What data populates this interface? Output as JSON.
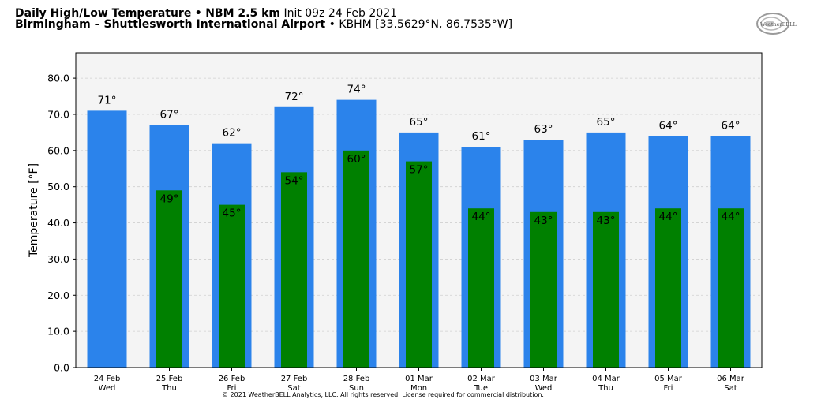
{
  "header": {
    "title_bold_1": "Daily High/Low Temperature",
    "separator": "•",
    "title_bold_2": "NBM 2.5 km",
    "init_text": "Init 09z 24 Feb 2021",
    "location_bold": "Birmingham – Shuttlesworth International Airport",
    "station_text": "KBHM [33.5629°N, 86.7535°W]"
  },
  "logo": {
    "text": "WeatherBELL"
  },
  "footer": {
    "copyright": "© 2021 WeatherBELL Analytics, LLC. All rights reserved. License required for commercial distribution."
  },
  "colors": {
    "high": "#2b83eb",
    "low": "#008000",
    "plot_bg": "#f4f4f4"
  },
  "chart_data": {
    "type": "bar",
    "ylabel": "Temperature [°F]",
    "ylim": [
      0,
      87
    ],
    "yticks": [
      "0.0",
      "10.0",
      "20.0",
      "30.0",
      "40.0",
      "50.0",
      "60.0",
      "70.0",
      "80.0"
    ],
    "ytick_values": [
      0,
      10,
      20,
      30,
      40,
      50,
      60,
      70,
      80
    ],
    "grid": true,
    "categories": [
      [
        "24 Feb",
        "Wed"
      ],
      [
        "25 Feb",
        "Thu"
      ],
      [
        "26 Feb",
        "Fri"
      ],
      [
        "27 Feb",
        "Sat"
      ],
      [
        "28 Feb",
        "Sun"
      ],
      [
        "01 Mar",
        "Mon"
      ],
      [
        "02 Mar",
        "Tue"
      ],
      [
        "03 Mar",
        "Wed"
      ],
      [
        "04 Mar",
        "Thu"
      ],
      [
        "05 Mar",
        "Fri"
      ],
      [
        "06 Mar",
        "Sat"
      ]
    ],
    "series": [
      {
        "key": "high",
        "values": [
          71,
          67,
          62,
          72,
          74,
          65,
          61,
          63,
          65,
          64,
          64
        ],
        "labels": [
          "71°",
          "67°",
          "62°",
          "72°",
          "74°",
          "65°",
          "61°",
          "63°",
          "65°",
          "64°",
          "64°"
        ]
      },
      {
        "key": "low",
        "values": [
          null,
          49,
          45,
          54,
          60,
          57,
          44,
          43,
          43,
          44,
          44
        ],
        "labels": [
          "",
          "49°",
          "45°",
          "54°",
          "60°",
          "57°",
          "44°",
          "43°",
          "43°",
          "44°",
          "44°"
        ]
      }
    ]
  }
}
